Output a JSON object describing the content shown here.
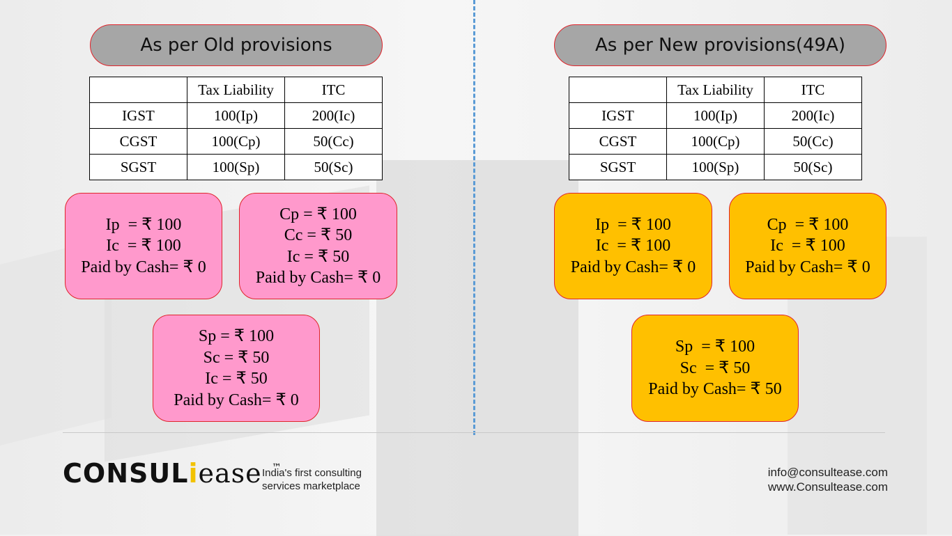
{
  "left": {
    "title": "As per Old provisions",
    "table": {
      "headers": [
        "",
        "Tax Liability",
        "ITC"
      ],
      "rows": [
        [
          "IGST",
          "100(Ip)",
          "200(Ic)"
        ],
        [
          "CGST",
          "100(Cp)",
          "50(Cc)"
        ],
        [
          "SGST",
          "100(Sp)",
          "50(Sc)"
        ]
      ]
    },
    "boxes": [
      [
        "Ip  = ₹ 100",
        "Ic  = ₹ 100",
        "Paid by Cash= ₹ 0"
      ],
      [
        "Cp = ₹ 100",
        "Cc = ₹ 50",
        "Ic = ₹ 50",
        "Paid by Cash= ₹ 0"
      ],
      [
        "Sp = ₹ 100",
        "Sc = ₹ 50",
        "Ic = ₹ 50",
        "Paid by Cash= ₹ 0"
      ]
    ]
  },
  "right": {
    "title": "As per New provisions(49A)",
    "table": {
      "headers": [
        "",
        "Tax Liability",
        "ITC"
      ],
      "rows": [
        [
          "IGST",
          "100(Ip)",
          "200(Ic)"
        ],
        [
          "CGST",
          "100(Cp)",
          "50(Cc)"
        ],
        [
          "SGST",
          "100(Sp)",
          "50(Sc)"
        ]
      ]
    },
    "boxes": [
      [
        "Ip  = ₹ 100",
        "Ic  = ₹ 100",
        "Paid by Cash= ₹ 0"
      ],
      [
        "Cp  = ₹ 100",
        "Ic  = ₹ 100",
        "Paid by Cash= ₹ 0"
      ],
      [
        "Sp  = ₹ 100",
        "Sc  = ₹ 50",
        "Paid by Cash= ₹ 50"
      ]
    ]
  },
  "footer": {
    "logo_main": "CONSUL",
    "logo_i": "i",
    "logo_ease": "ease",
    "logo_tm": "™",
    "tagline_line1": "India's first consulting",
    "tagline_line2": "services marketplace",
    "email": "info@consultease.com",
    "website": "www.Consultease.com"
  },
  "colors": {
    "pink_box": "#ff99cc",
    "gold_box": "#ffc000",
    "divider": "#5b9bd5",
    "border_red": "#e0242b",
    "title_pill": "#a6a6a6"
  }
}
